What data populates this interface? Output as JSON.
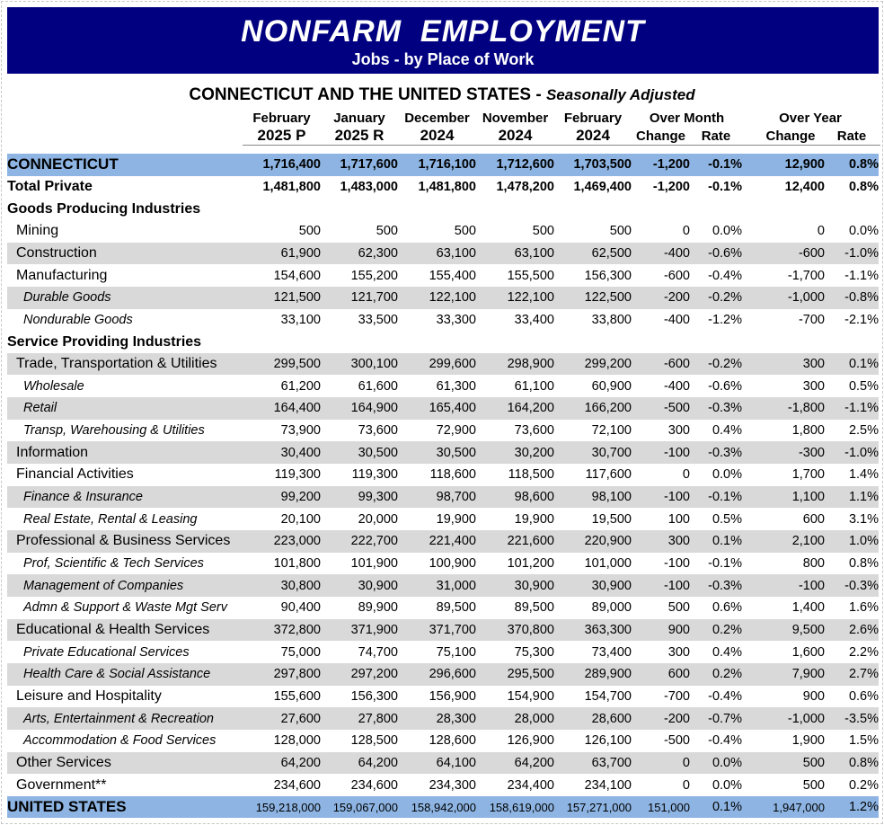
{
  "title": "NONFARM  EMPLOYMENT",
  "subtitle": "Jobs - by Place of Work",
  "table_title": "CONNECTICUT AND THE UNITED STATES - ",
  "table_title_note": "Seasonally Adjusted",
  "headers": [
    {
      "l1": "February",
      "l2": "2025 P"
    },
    {
      "l1": "January",
      "l2": "2025 R"
    },
    {
      "l1": "December",
      "l2": "2024"
    },
    {
      "l1": "November",
      "l2": "2024"
    },
    {
      "l1": "February",
      "l2": "2024"
    }
  ],
  "group_headers": {
    "over_month": "Over Month",
    "over_year": "Over Year"
  },
  "sub_headers": {
    "change": "Change",
    "rate": "Rate"
  },
  "rows": [
    {
      "label": "CONNECTICUT",
      "style": "b blue",
      "values": [
        "1,716,400",
        "1,717,600",
        "1,716,100",
        "1,712,600",
        "1,703,500",
        "-1,200",
        "-0.1%",
        "12,900",
        "0.8%"
      ]
    },
    {
      "label": "Total Private",
      "style": "b",
      "values": [
        "1,481,800",
        "1,483,000",
        "1,481,800",
        "1,478,200",
        "1,469,400",
        "-1,200",
        "-0.1%",
        "12,400",
        "0.8%"
      ]
    },
    {
      "label": "Goods Producing Industries",
      "style": "b",
      "values": []
    },
    {
      "label": "Mining",
      "style": "l1",
      "values": [
        "500",
        "500",
        "500",
        "500",
        "500",
        "0",
        "0.0%",
        "0",
        "0.0%"
      ]
    },
    {
      "label": "Construction",
      "style": "l1 shade",
      "values": [
        "61,900",
        "62,300",
        "63,100",
        "63,100",
        "62,500",
        "-400",
        "-0.6%",
        "-600",
        "-1.0%"
      ]
    },
    {
      "label": "Manufacturing",
      "style": "l1",
      "values": [
        "154,600",
        "155,200",
        "155,400",
        "155,500",
        "156,300",
        "-600",
        "-0.4%",
        "-1,700",
        "-1.1%"
      ]
    },
    {
      "label": "Durable Goods",
      "style": "l2 shade",
      "values": [
        "121,500",
        "121,700",
        "122,100",
        "122,100",
        "122,500",
        "-200",
        "-0.2%",
        "-1,000",
        "-0.8%"
      ]
    },
    {
      "label": "Nondurable Goods",
      "style": "l2",
      "values": [
        "33,100",
        "33,500",
        "33,300",
        "33,400",
        "33,800",
        "-400",
        "-1.2%",
        "-700",
        "-2.1%"
      ]
    },
    {
      "label": "Service Providing Industries",
      "style": "b",
      "values": []
    },
    {
      "label": "Trade, Transportation & Utilities",
      "style": "l1 shade",
      "values": [
        "299,500",
        "300,100",
        "299,600",
        "298,900",
        "299,200",
        "-600",
        "-0.2%",
        "300",
        "0.1%"
      ]
    },
    {
      "label": "Wholesale",
      "style": "l2",
      "values": [
        "61,200",
        "61,600",
        "61,300",
        "61,100",
        "60,900",
        "-400",
        "-0.6%",
        "300",
        "0.5%"
      ]
    },
    {
      "label": "Retail",
      "style": "l2 shade",
      "values": [
        "164,400",
        "164,900",
        "165,400",
        "164,200",
        "166,200",
        "-500",
        "-0.3%",
        "-1,800",
        "-1.1%"
      ]
    },
    {
      "label": "Transp, Warehousing & Utilities",
      "style": "l2",
      "values": [
        "73,900",
        "73,600",
        "72,900",
        "73,600",
        "72,100",
        "300",
        "0.4%",
        "1,800",
        "2.5%"
      ]
    },
    {
      "label": "Information",
      "style": "l1 shade",
      "values": [
        "30,400",
        "30,500",
        "30,500",
        "30,200",
        "30,700",
        "-100",
        "-0.3%",
        "-300",
        "-1.0%"
      ]
    },
    {
      "label": "Financial Activities",
      "style": "l1",
      "values": [
        "119,300",
        "119,300",
        "118,600",
        "118,500",
        "117,600",
        "0",
        "0.0%",
        "1,700",
        "1.4%"
      ]
    },
    {
      "label": "Finance & Insurance",
      "style": "l2 shade",
      "values": [
        "99,200",
        "99,300",
        "98,700",
        "98,600",
        "98,100",
        "-100",
        "-0.1%",
        "1,100",
        "1.1%"
      ]
    },
    {
      "label": "Real Estate, Rental & Leasing",
      "style": "l2",
      "values": [
        "20,100",
        "20,000",
        "19,900",
        "19,900",
        "19,500",
        "100",
        "0.5%",
        "600",
        "3.1%"
      ]
    },
    {
      "label": "Professional & Business Services",
      "style": "l1 shade",
      "values": [
        "223,000",
        "222,700",
        "221,400",
        "221,600",
        "220,900",
        "300",
        "0.1%",
        "2,100",
        "1.0%"
      ]
    },
    {
      "label": "Prof, Scientific & Tech Services",
      "style": "l2",
      "values": [
        "101,800",
        "101,900",
        "100,900",
        "101,200",
        "101,000",
        "-100",
        "-0.1%",
        "800",
        "0.8%"
      ]
    },
    {
      "label": "Management of Companies",
      "style": "l2 shade",
      "values": [
        "30,800",
        "30,900",
        "31,000",
        "30,900",
        "30,900",
        "-100",
        "-0.3%",
        "-100",
        "-0.3%"
      ]
    },
    {
      "label": "Admn & Support & Waste Mgt Serv",
      "style": "l2",
      "values": [
        "90,400",
        "89,900",
        "89,500",
        "89,500",
        "89,000",
        "500",
        "0.6%",
        "1,400",
        "1.6%"
      ]
    },
    {
      "label": "Educational & Health Services",
      "style": "l1 shade",
      "values": [
        "372,800",
        "371,900",
        "371,700",
        "370,800",
        "363,300",
        "900",
        "0.2%",
        "9,500",
        "2.6%"
      ]
    },
    {
      "label": "Private Educational Services",
      "style": "l2",
      "values": [
        "75,000",
        "74,700",
        "75,100",
        "75,300",
        "73,400",
        "300",
        "0.4%",
        "1,600",
        "2.2%"
      ]
    },
    {
      "label": "Health Care & Social Assistance",
      "style": "l2 shade",
      "values": [
        "297,800",
        "297,200",
        "296,600",
        "295,500",
        "289,900",
        "600",
        "0.2%",
        "7,900",
        "2.7%"
      ]
    },
    {
      "label": "Leisure and Hospitality",
      "style": "l1",
      "values": [
        "155,600",
        "156,300",
        "156,900",
        "154,900",
        "154,700",
        "-700",
        "-0.4%",
        "900",
        "0.6%"
      ]
    },
    {
      "label": "Arts, Entertainment & Recreation",
      "style": "l2 shade",
      "values": [
        "27,600",
        "27,800",
        "28,300",
        "28,000",
        "28,600",
        "-200",
        "-0.7%",
        "-1,000",
        "-3.5%"
      ]
    },
    {
      "label": "Accommodation & Food Services",
      "style": "l2",
      "values": [
        "128,000",
        "128,500",
        "128,600",
        "126,900",
        "126,100",
        "-500",
        "-0.4%",
        "1,900",
        "1.5%"
      ]
    },
    {
      "label": "Other Services",
      "style": "l1 shade",
      "values": [
        "64,200",
        "64,200",
        "64,100",
        "64,200",
        "63,700",
        "0",
        "0.0%",
        "500",
        "0.8%"
      ]
    },
    {
      "label": "Government**",
      "style": "l1",
      "values": [
        "234,600",
        "234,600",
        "234,300",
        "234,400",
        "234,100",
        "0",
        "0.0%",
        "500",
        "0.2%"
      ]
    },
    {
      "label": "UNITED STATES",
      "style": "b blue us",
      "values": [
        "159,218,000",
        "159,067,000",
        "158,942,000",
        "158,619,000",
        "157,271,000",
        "151,000",
        "0.1%",
        "1,947,000",
        "1.2%"
      ]
    }
  ],
  "colors": {
    "banner": "#000080",
    "highlight_row": "#8db4e2",
    "shade_row": "#d9d9d9"
  }
}
